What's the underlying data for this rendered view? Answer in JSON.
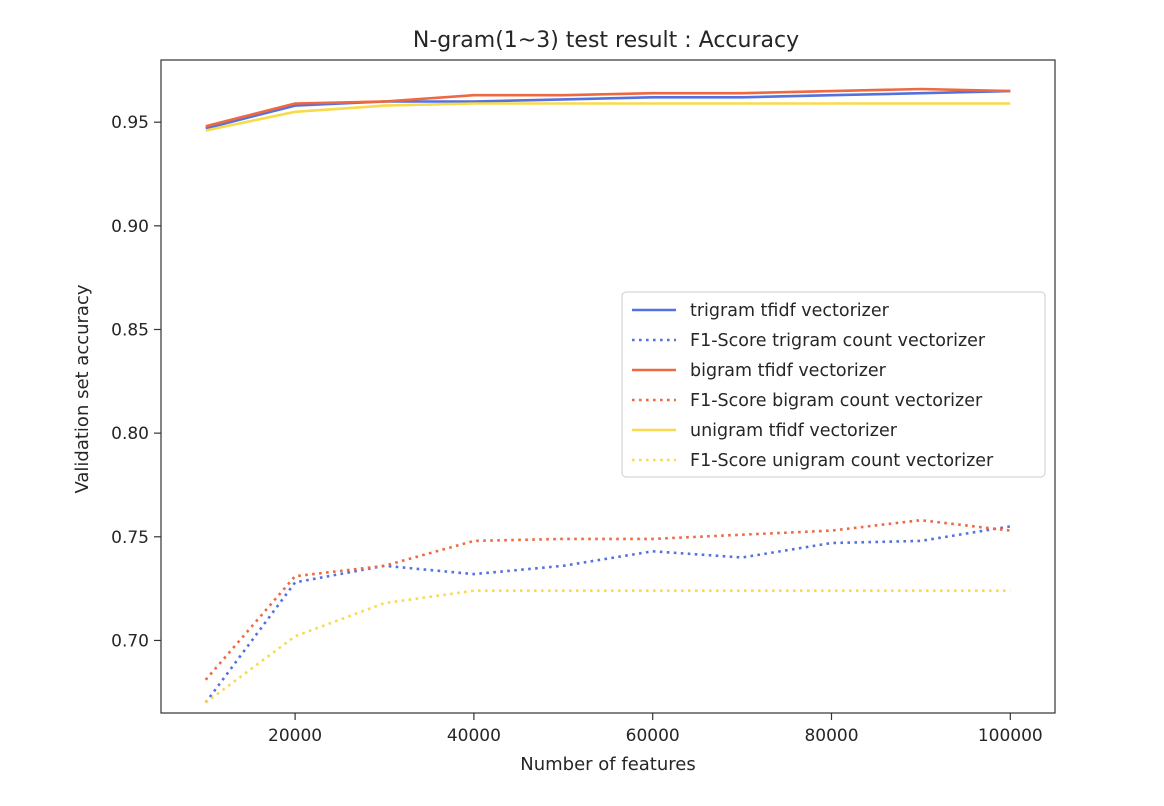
{
  "chart_data": {
    "type": "line",
    "title": "N-gram(1~3) test result : Accuracy",
    "xlabel": "Number of features",
    "ylabel": "Validation set accuracy",
    "xlim": [
      5000,
      105000
    ],
    "ylim": [
      0.665,
      0.98
    ],
    "xticks": [
      20000,
      40000,
      60000,
      80000,
      100000
    ],
    "xtick_labels": [
      "20000",
      "40000",
      "60000",
      "80000",
      "100000"
    ],
    "yticks": [
      0.7,
      0.75,
      0.8,
      0.85,
      0.9,
      0.95
    ],
    "ytick_labels": [
      "0.70",
      "0.75",
      "0.80",
      "0.85",
      "0.90",
      "0.95"
    ],
    "grid": false,
    "legend_position": "center-right",
    "x": [
      10000,
      20000,
      30000,
      40000,
      50000,
      60000,
      70000,
      80000,
      90000,
      100000
    ],
    "series": [
      {
        "name": "trigram tfidf vectorizer",
        "color": "#5471e0",
        "style": "solid",
        "values": [
          0.947,
          0.958,
          0.96,
          0.96,
          0.961,
          0.962,
          0.962,
          0.963,
          0.964,
          0.965
        ]
      },
      {
        "name": "F1-Score trigram count vectorizer",
        "color": "#5471e0",
        "style": "dotted",
        "values": [
          0.67,
          0.728,
          0.736,
          0.732,
          0.736,
          0.743,
          0.74,
          0.747,
          0.748,
          0.755
        ]
      },
      {
        "name": "bigram tfidf vectorizer",
        "color": "#ee6840",
        "style": "solid",
        "values": [
          0.948,
          0.959,
          0.96,
          0.963,
          0.963,
          0.964,
          0.964,
          0.965,
          0.966,
          0.965
        ]
      },
      {
        "name": "F1-Score bigram count vectorizer",
        "color": "#ee6840",
        "style": "dotted",
        "values": [
          0.681,
          0.731,
          0.736,
          0.748,
          0.749,
          0.749,
          0.751,
          0.753,
          0.758,
          0.753
        ]
      },
      {
        "name": "unigram tfidf vectorizer",
        "color": "#f9da4a",
        "style": "solid",
        "values": [
          0.946,
          0.955,
          0.958,
          0.959,
          0.959,
          0.959,
          0.959,
          0.959,
          0.959,
          0.959
        ]
      },
      {
        "name": "F1-Score unigram count vectorizer",
        "color": "#f9da4a",
        "style": "dotted",
        "values": [
          0.67,
          0.702,
          0.718,
          0.724,
          0.724,
          0.724,
          0.724,
          0.724,
          0.724,
          0.724
        ]
      }
    ]
  }
}
